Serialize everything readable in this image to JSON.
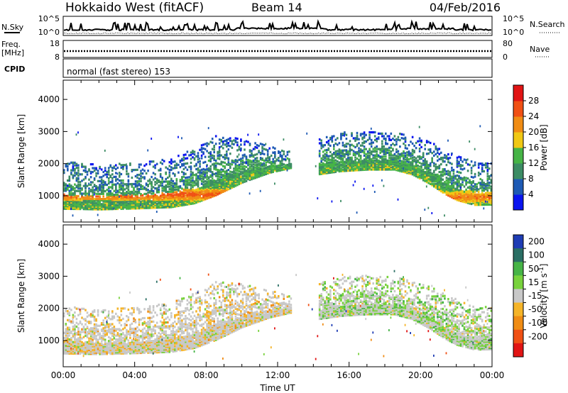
{
  "header": {
    "station": "Hokkaido West (fitACF)",
    "beam": "Beam 14",
    "date": "04/Feb/2016"
  },
  "noise_panel": {
    "left_label": "N.Sky",
    "right_label": "N.Search",
    "left_ticks": [
      "10^5",
      "10^0"
    ],
    "right_ticks": [
      "10^5",
      "10^0"
    ]
  },
  "freq_panel": {
    "label_line1": "Freq.",
    "label_line2": "[MHz]",
    "left_ticks": [
      "18",
      "8"
    ],
    "right_ticks": [
      "80",
      "0"
    ],
    "right_label": "Nave"
  },
  "cpid_panel": {
    "label": "CPID",
    "text": "normal (fast stereo) 153"
  },
  "colors": {
    "power": [
      "#0a14f0",
      "#1e5ab4",
      "#3c8c64",
      "#46b446",
      "#f0c814",
      "#f08c14",
      "#f05014",
      "#e11414"
    ],
    "velocity": [
      "#1e3cb4",
      "#2a6e64",
      "#46b446",
      "#78d23c",
      "#c8c8c8",
      "#f5b428",
      "#f08c14",
      "#f05014",
      "#e11414"
    ]
  },
  "chart_data": [
    {
      "type": "heatmap",
      "name": "power",
      "xlabel": "",
      "ylabel": "Slant Range [km]",
      "xlim": [
        0,
        24
      ],
      "ylim": [
        180,
        4600
      ],
      "yticks": [
        1000,
        2000,
        3000,
        4000
      ],
      "colorbar": {
        "label": "Power [dB]",
        "ticks": [
          "4",
          "8",
          "12",
          "16",
          "20",
          "24",
          "28"
        ],
        "range": [
          0,
          32
        ]
      },
      "bands": [
        {
          "t": [
            0,
            2,
            4,
            6,
            7.3,
            8.5,
            10,
            11.5,
            12.7
          ],
          "lo": [
            630,
            610,
            640,
            680,
            800,
            1050,
            1450,
            1750,
            1900
          ],
          "hi": [
            2100,
            2000,
            2050,
            2200,
            2500,
            2900,
            2800,
            2600,
            2400
          ],
          "peak": 14,
          "core_range": [
            900,
            1250
          ],
          "core_peak": 26
        },
        {
          "t": [
            14.2,
            15.5,
            17,
            18.5,
            19.5,
            20.5,
            21.3,
            22,
            23,
            24
          ],
          "lo": [
            1700,
            1800,
            1850,
            1850,
            1700,
            1400,
            1100,
            900,
            750,
            760
          ],
          "hi": [
            2800,
            3000,
            3050,
            3000,
            2900,
            2700,
            2500,
            2300,
            2100,
            2100
          ],
          "peak": 14,
          "core_range": [
            800,
            1200
          ],
          "core_peak": 24
        }
      ]
    },
    {
      "type": "heatmap",
      "name": "velocity",
      "xlabel": "Time UT",
      "ylabel": "Slant Range [km]",
      "xlim": [
        0,
        24
      ],
      "ylim": [
        180,
        4600
      ],
      "xtick_labels": [
        "00:00",
        "04:00",
        "08:00",
        "12:00",
        "16:00",
        "20:00",
        "00:00"
      ],
      "xticks": [
        0,
        4,
        8,
        12,
        16,
        20,
        24
      ],
      "yticks": [
        1000,
        2000,
        3000,
        4000
      ],
      "colorbar": {
        "label": "Velocity [m s^-1]",
        "ticks": [
          "200",
          "100",
          "50",
          "15",
          "-15",
          "-50",
          "-100",
          "-200"
        ]
      },
      "bands": [
        {
          "t": [
            0,
            2,
            4,
            6,
            7.3,
            8.5,
            10,
            11.5,
            12.7
          ],
          "lo": [
            630,
            610,
            640,
            680,
            800,
            1050,
            1450,
            1750,
            1900
          ],
          "hi": [
            2100,
            2000,
            2050,
            2200,
            2500,
            2900,
            2800,
            2600,
            2400
          ],
          "dominant": "-15"
        },
        {
          "t": [
            14.2,
            15.5,
            17,
            18.5,
            19.5,
            20.5,
            21.3,
            22,
            23,
            24
          ],
          "lo": [
            1700,
            1800,
            1850,
            1850,
            1700,
            1400,
            1100,
            900,
            750,
            760
          ],
          "hi": [
            2800,
            3000,
            3050,
            3000,
            2900,
            2700,
            2500,
            2300,
            2100,
            2100
          ],
          "dominant": "15"
        }
      ]
    }
  ]
}
